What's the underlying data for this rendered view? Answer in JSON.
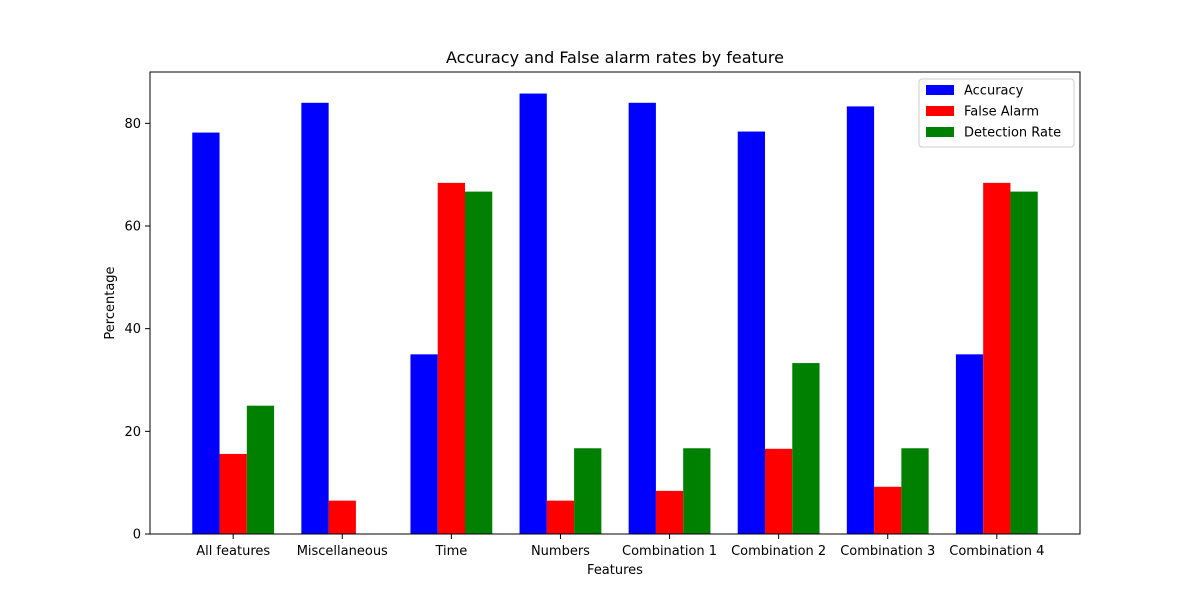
{
  "chart_data": {
    "type": "bar",
    "title": "Accuracy and False alarm rates by feature",
    "xlabel": "Features",
    "ylabel": "Percentage",
    "categories": [
      "All features",
      "Miscellaneous",
      "Time",
      "Numbers",
      "Combination 1",
      "Combination 2",
      "Combination 3",
      "Combination 4"
    ],
    "series": [
      {
        "name": "Accuracy",
        "color": "#0000ff",
        "values": [
          78.2,
          84.0,
          35.0,
          85.8,
          84.0,
          78.4,
          83.3,
          35.0
        ]
      },
      {
        "name": "False Alarm",
        "color": "#ff0000",
        "values": [
          15.6,
          6.5,
          68.4,
          6.5,
          8.4,
          16.6,
          9.2,
          68.4
        ]
      },
      {
        "name": "Detection Rate",
        "color": "#008000",
        "values": [
          25.0,
          0.0,
          66.7,
          16.7,
          16.7,
          33.3,
          16.7,
          66.7
        ]
      }
    ],
    "ylim": [
      0,
      90
    ],
    "yticks": [
      0,
      20,
      40,
      60,
      80
    ],
    "grid": false,
    "legend": "top-right"
  }
}
